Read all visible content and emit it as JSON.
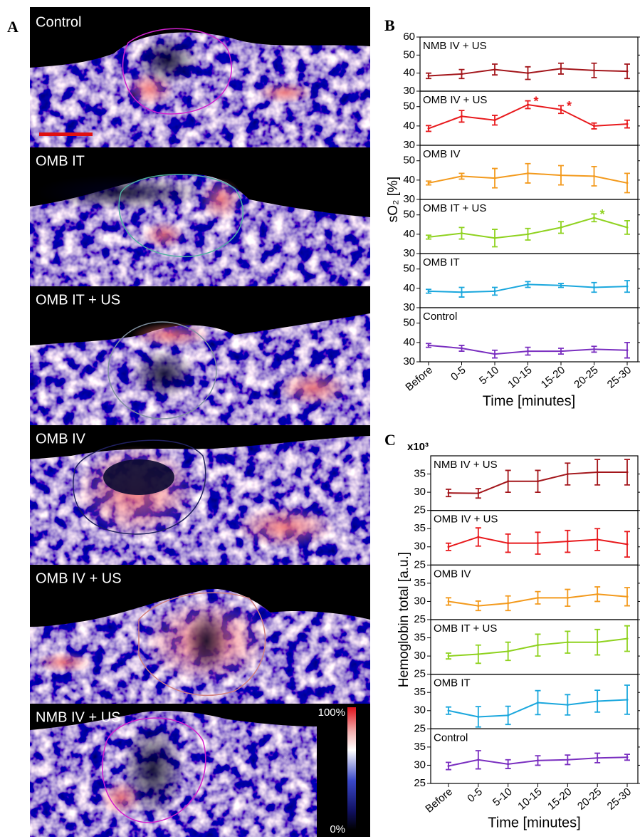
{
  "panel_a": {
    "label": "A",
    "images": [
      "Control",
      "OMB IT",
      "OMB IT + US",
      "OMB IV",
      "OMB IV + US",
      "NMB IV + US"
    ],
    "colorbar": {
      "max": "100%",
      "min": "0%"
    }
  },
  "chart_data": [
    {
      "type": "line",
      "panel": "B",
      "ylabel": "sO₂ [%]",
      "xlabel": "Time [minutes]",
      "categories": [
        "Before",
        "0-5",
        "5-10",
        "10-15",
        "15-20",
        "20-25",
        "25-30"
      ],
      "subplots": [
        {
          "name": "NMB IV + US",
          "color": "#a3161b",
          "ylim": [
            30,
            60
          ],
          "yticks": [
            30,
            40,
            50,
            60
          ],
          "values": [
            38.5,
            39.5,
            42,
            40,
            42.5,
            41.5,
            41
          ],
          "errors": [
            1.5,
            2.5,
            3,
            3.5,
            3,
            4,
            4
          ]
        },
        {
          "name": "OMB IV + US",
          "color": "#e8191c",
          "ylim": [
            30,
            58
          ],
          "yticks": [
            30,
            40,
            50
          ],
          "values": [
            38.7,
            45,
            43,
            51,
            48.5,
            40,
            41
          ],
          "errors": [
            1.5,
            3,
            2.5,
            2,
            2,
            1.5,
            2
          ],
          "annotations": [
            {
              "x": "10-15",
              "text": "*"
            },
            {
              "x": "15-20",
              "text": "*"
            }
          ]
        },
        {
          "name": "OMB IV",
          "color": "#f39a1d",
          "ylim": [
            30,
            58
          ],
          "yticks": [
            30,
            40,
            50
          ],
          "values": [
            38.5,
            42,
            41,
            43.5,
            42.5,
            42,
            38.5
          ],
          "errors": [
            1,
            1.5,
            5,
            5,
            5,
            5,
            5
          ]
        },
        {
          "name": "OMB IT + US",
          "color": "#8fd21f",
          "ylim": [
            30,
            58
          ],
          "yticks": [
            30,
            40,
            50
          ],
          "values": [
            38.5,
            40.5,
            38,
            40,
            43.5,
            48.5,
            43.5
          ],
          "errors": [
            1,
            3,
            4.5,
            3,
            3,
            2,
            3.5
          ],
          "annotations": [
            {
              "x": "20-25",
              "text": "*"
            }
          ]
        },
        {
          "name": "OMB IT",
          "color": "#1aa7dd",
          "ylim": [
            30,
            58
          ],
          "yticks": [
            30,
            40,
            50
          ],
          "values": [
            38.5,
            38,
            38.5,
            42,
            41.5,
            40.5,
            41
          ],
          "errors": [
            1,
            2.5,
            2,
            1.5,
            1,
            2.5,
            3
          ]
        },
        {
          "name": "Control",
          "color": "#7a2fc0",
          "ylim": [
            30,
            58
          ],
          "yticks": [
            30,
            40,
            50
          ],
          "values": [
            38.5,
            37,
            34,
            35.5,
            35.5,
            36.5,
            36
          ],
          "errors": [
            1,
            1.5,
            2,
            2,
            1.5,
            1.5,
            4
          ]
        }
      ]
    },
    {
      "type": "line",
      "panel": "C",
      "ylabel": "Hemoglobin total [a.u.]",
      "xlabel": "Time [minutes]",
      "y_multiplier": "x10³",
      "categories": [
        "Before",
        "0-5",
        "5-10",
        "10-15",
        "15-20",
        "20-25",
        "25-30"
      ],
      "subplots": [
        {
          "name": "NMB IV + US",
          "color": "#a3161b",
          "ylim": [
            25,
            40
          ],
          "yticks": [
            25,
            30,
            35
          ],
          "values": [
            29.8,
            29.7,
            33,
            33,
            35,
            35.5,
            35.5
          ],
          "errors": [
            1,
            1.3,
            3,
            3,
            3,
            3.5,
            3.5
          ]
        },
        {
          "name": "OMB IV + US",
          "color": "#e8191c",
          "ylim": [
            25,
            40
          ],
          "yticks": [
            25,
            30,
            35
          ],
          "values": [
            30,
            32.7,
            31,
            31,
            31.5,
            32,
            30.7
          ],
          "errors": [
            1,
            2.5,
            2.5,
            3,
            3,
            3,
            3.5
          ]
        },
        {
          "name": "OMB IV",
          "color": "#f39a1d",
          "ylim": [
            25,
            40
          ],
          "yticks": [
            25,
            30,
            35
          ],
          "values": [
            30,
            28.8,
            29.5,
            31,
            31,
            32,
            31.3
          ],
          "errors": [
            1,
            1.3,
            2,
            1.7,
            2.3,
            2,
            2.5
          ]
        },
        {
          "name": "OMB IT + US",
          "color": "#8fd21f",
          "ylim": [
            25,
            40
          ],
          "yticks": [
            25,
            30,
            35
          ],
          "values": [
            30,
            30.5,
            31.3,
            33,
            33.8,
            33.8,
            34.8
          ],
          "errors": [
            0.8,
            2.5,
            2.5,
            3,
            3,
            3.5,
            3.5
          ]
        },
        {
          "name": "OMB IT",
          "color": "#1aa7dd",
          "ylim": [
            25,
            40
          ],
          "yticks": [
            25,
            30,
            35
          ],
          "values": [
            30,
            28.3,
            28.7,
            32.2,
            31.6,
            32.6,
            33
          ],
          "errors": [
            1,
            2.8,
            2.5,
            3.3,
            2.8,
            3,
            4
          ]
        },
        {
          "name": "Control",
          "color": "#7a2fc0",
          "ylim": [
            25,
            40
          ],
          "yticks": [
            25,
            30,
            35
          ],
          "values": [
            29.8,
            31.5,
            30.3,
            31.3,
            31.5,
            32,
            32.2
          ],
          "errors": [
            1,
            2.5,
            1.2,
            1.3,
            1.3,
            1.3,
            0.8
          ]
        }
      ]
    }
  ]
}
